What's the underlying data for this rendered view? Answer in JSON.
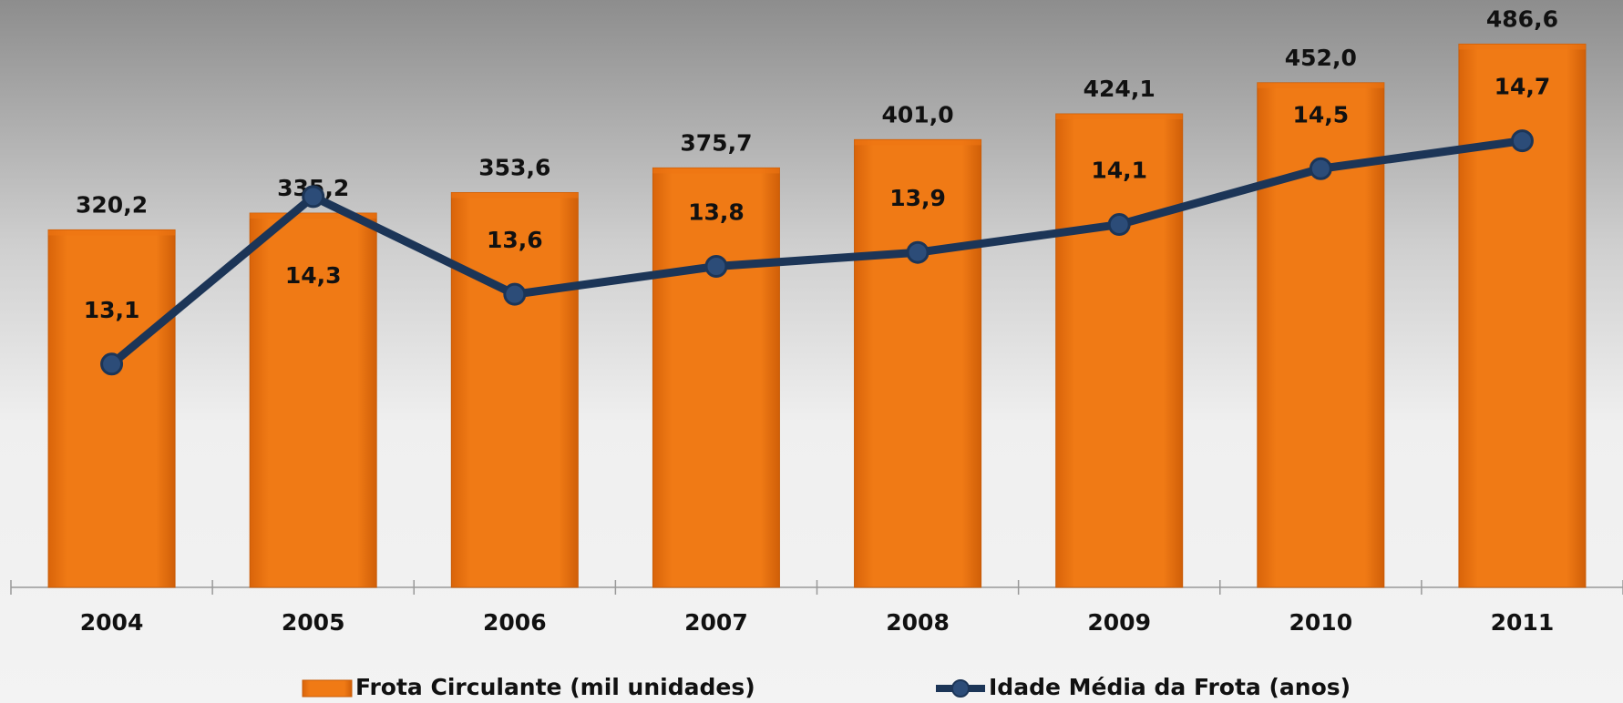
{
  "chart_data": {
    "type": "bar-line",
    "categories": [
      "2004",
      "2005",
      "2006",
      "2007",
      "2008",
      "2009",
      "2010",
      "2011"
    ],
    "ylim": [
      0,
      500
    ],
    "y2lim": [
      11.5,
      15.5
    ],
    "series": [
      {
        "name": "Frota Circulante (mil unidades)",
        "type": "bar",
        "color": "#ee7413",
        "values": [
          320.2,
          335.2,
          353.6,
          375.7,
          401.0,
          424.1,
          452.0,
          486.6
        ],
        "value_labels": [
          "320,2",
          "335,2",
          "353,6",
          "375,7",
          "401,0",
          "424,1",
          "452,0",
          "486,6"
        ]
      },
      {
        "name": "Idade Média da Frota (anos)",
        "type": "line",
        "axis": "y2",
        "color": "#1c3557",
        "values": [
          13.1,
          14.3,
          13.6,
          13.8,
          13.9,
          14.1,
          14.5,
          14.7
        ],
        "value_labels": [
          "13,1",
          "14,3",
          "13,6",
          "13,8",
          "13,9",
          "14,1",
          "14,5",
          "14,7"
        ]
      }
    ]
  }
}
